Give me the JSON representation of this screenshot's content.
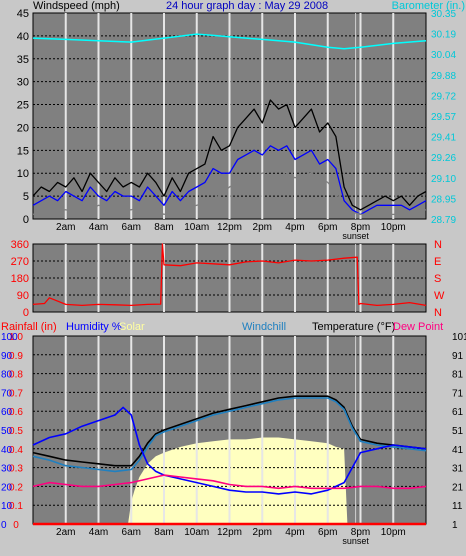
{
  "chart_data": [
    {
      "type": "line",
      "title": "24 hour graph day : May 29 2008",
      "left_label": "Windspeed (mph)",
      "right_label": "Barometer (in.)",
      "x_tick_labels": [
        "2am",
        "4am",
        "6am",
        "8am",
        "10am",
        "12pm",
        "2pm",
        "4pm",
        "6pm",
        "8pm",
        "10pm"
      ],
      "sunset_label": "sunset",
      "ylim": [
        0,
        45
      ],
      "y_ticks": [
        0,
        5,
        10,
        15,
        20,
        25,
        30,
        35,
        40,
        45
      ],
      "y2_ticks": [
        "28.79",
        "28.95",
        "29.10",
        "29.26",
        "29.41",
        "29.57",
        "29.72",
        "29.88",
        "30.04",
        "30.19",
        "30.35"
      ],
      "y2lim": [
        28.79,
        30.35
      ],
      "grid": true,
      "series": [
        {
          "key": "gust",
          "color": "#000000",
          "hours": [
            0,
            0.5,
            1,
            1.5,
            2,
            2.5,
            3,
            3.5,
            4,
            4.5,
            5,
            5.5,
            6,
            6.5,
            7,
            7.5,
            8,
            8.5,
            9,
            9.5,
            10,
            10.5,
            11,
            11.5,
            12,
            12.5,
            13,
            13.5,
            14,
            14.5,
            15,
            15.5,
            16,
            16.5,
            17,
            17.5,
            18,
            18.5,
            19,
            19.5,
            20,
            20.5,
            21,
            21.5,
            22,
            22.5,
            23,
            23.5,
            24
          ],
          "values": [
            5,
            7,
            6,
            8,
            7,
            9,
            6,
            10,
            8,
            6,
            9,
            7,
            8,
            7,
            10,
            8,
            5,
            9,
            6,
            10,
            11,
            12,
            18,
            15,
            16,
            20,
            22,
            24,
            21,
            26,
            24,
            25,
            20,
            22,
            24,
            19,
            21,
            18,
            7,
            3,
            2,
            3,
            4,
            5,
            4,
            5,
            3,
            5,
            6
          ]
        },
        {
          "key": "avg",
          "color": "#0000ff",
          "hours": [
            0,
            0.5,
            1,
            1.5,
            2,
            2.5,
            3,
            3.5,
            4,
            4.5,
            5,
            5.5,
            6,
            6.5,
            7,
            7.5,
            8,
            8.5,
            9,
            9.5,
            10,
            10.5,
            11,
            11.5,
            12,
            12.5,
            13,
            13.5,
            14,
            14.5,
            15,
            15.5,
            16,
            16.5,
            17,
            17.5,
            18,
            18.5,
            19,
            19.5,
            20,
            20.5,
            21,
            21.5,
            22,
            22.5,
            23,
            23.5,
            24
          ],
          "values": [
            3,
            4,
            5,
            4,
            6,
            5,
            4,
            7,
            5,
            4,
            6,
            5,
            5,
            4,
            7,
            5,
            3,
            6,
            4,
            6,
            7,
            8,
            11,
            10,
            10,
            13,
            14,
            15,
            14,
            16,
            15,
            16,
            13,
            14,
            15,
            12,
            13,
            11,
            4,
            2,
            1,
            2,
            3,
            3,
            3,
            3,
            2,
            3,
            4
          ]
        },
        {
          "key": "lull",
          "color": "#808080",
          "hours": [
            0,
            1,
            2,
            3,
            4,
            5,
            6,
            7,
            8,
            9,
            10,
            11,
            12,
            13,
            14,
            15,
            16,
            17,
            18,
            18.5,
            19,
            20,
            21,
            22,
            23,
            24
          ],
          "values": [
            1,
            2,
            2,
            1,
            3,
            2,
            2,
            3,
            1,
            2,
            3,
            4,
            7,
            9,
            10,
            11,
            9,
            10,
            8,
            6,
            2,
            1,
            1,
            1,
            1,
            2
          ]
        },
        {
          "key": "barometer",
          "color": "#00ffff",
          "hours": [
            0,
            2,
            4,
            6,
            8,
            10,
            11,
            12,
            14,
            16,
            18,
            19,
            20,
            22,
            24
          ],
          "values": [
            30.16,
            30.15,
            30.14,
            30.13,
            30.16,
            30.19,
            30.18,
            30.17,
            30.15,
            30.13,
            30.09,
            30.08,
            30.09,
            30.12,
            30.14
          ]
        }
      ]
    },
    {
      "type": "line",
      "left_ticks": [
        0,
        90,
        180,
        270,
        360
      ],
      "ylim": [
        0,
        360
      ],
      "right_labels": [
        "N",
        "W",
        "S",
        "E",
        "N"
      ],
      "series": [
        {
          "key": "direction",
          "color": "#ff0000",
          "hours": [
            0,
            0.7,
            1,
            2,
            3,
            4,
            5,
            6,
            7,
            7.8,
            7.9,
            8,
            9,
            10,
            11,
            12,
            13,
            14,
            15,
            16,
            17,
            18,
            19,
            19.8,
            19.9,
            20,
            21,
            22,
            23,
            24
          ],
          "values": [
            40,
            45,
            75,
            40,
            35,
            40,
            38,
            35,
            40,
            42,
            360,
            250,
            245,
            260,
            255,
            250,
            265,
            270,
            260,
            275,
            270,
            275,
            285,
            290,
            40,
            45,
            35,
            40,
            50,
            35
          ]
        }
      ]
    },
    {
      "type": "line",
      "legend_labels": {
        "rainfall": "Rainfall (in)",
        "humidity": "Humidity %",
        "solar": "Solar",
        "windchill": "Windchill",
        "temperature": "Temperature (°F)",
        "dewpoint": "Dew Point"
      },
      "x_tick_labels": [
        "2am",
        "4am",
        "6am",
        "8am",
        "10am",
        "12pm",
        "2pm",
        "4pm",
        "6pm",
        "8pm",
        "10pm"
      ],
      "sunset_label": "sunset",
      "rain_ticks": [
        "0",
        "0.1",
        "0.2",
        "0.3",
        "0.4",
        "0.5",
        "0.6",
        "0.7",
        "0.8",
        "0.9",
        "1.0"
      ],
      "humidity_ticks": [
        0,
        10,
        20,
        30,
        40,
        50,
        60,
        70,
        80,
        90,
        100
      ],
      "temp_ticks": [
        1,
        11,
        21,
        31,
        41,
        51,
        61,
        71,
        81,
        91,
        101
      ],
      "ylim": [
        0,
        100
      ],
      "series": [
        {
          "key": "solar",
          "color": "#ffffc0",
          "hours": [
            0,
            5.8,
            6,
            6.2,
            6.5,
            7,
            7.5,
            8,
            9,
            10,
            11,
            12,
            13,
            14,
            15,
            16,
            17,
            18,
            18.5,
            19,
            19.2,
            19.5,
            24
          ],
          "values": [
            0,
            0,
            12,
            18,
            25,
            32,
            36,
            38,
            41,
            43,
            44,
            45,
            45,
            46,
            46,
            45,
            44,
            43,
            41,
            40,
            0,
            0,
            0
          ]
        },
        {
          "key": "temperature",
          "color": "#000000",
          "hours": [
            0,
            1,
            2,
            3,
            4,
            5,
            6,
            6.5,
            7,
            7.5,
            8,
            9,
            10,
            11,
            12,
            13,
            14,
            15,
            16,
            17,
            18,
            18.5,
            19,
            19.5,
            20,
            21,
            22,
            23,
            24
          ],
          "values": [
            38,
            36,
            34,
            33,
            32,
            31,
            31,
            36,
            43,
            48,
            50,
            53,
            56,
            59,
            61,
            63,
            65,
            67,
            68,
            68,
            68,
            66,
            62,
            52,
            45,
            43,
            42,
            41,
            40
          ]
        },
        {
          "key": "windchill",
          "color": "#2080c0",
          "hours": [
            0,
            1,
            2,
            3,
            4,
            5,
            6,
            6.5,
            7,
            7.5,
            8,
            9,
            10,
            11,
            12,
            13,
            14,
            15,
            16,
            17,
            18,
            18.5,
            19,
            19.5,
            20,
            21,
            22,
            23,
            24
          ],
          "values": [
            36,
            34,
            31,
            30,
            29,
            28,
            29,
            34,
            41,
            47,
            49,
            52,
            55,
            58,
            60,
            62,
            64,
            66,
            67,
            67,
            67,
            65,
            61,
            51,
            44,
            42,
            41,
            40,
            39
          ]
        },
        {
          "key": "humidity",
          "color": "#0000ff",
          "hours": [
            0,
            1,
            2,
            3,
            4,
            5,
            5.5,
            6,
            6.5,
            7,
            7.5,
            8,
            9,
            10,
            11,
            12,
            13,
            14,
            15,
            16,
            17,
            18,
            18.5,
            19,
            19.5,
            20,
            21,
            22,
            23,
            24
          ],
          "values": [
            42,
            46,
            48,
            52,
            55,
            58,
            62,
            58,
            42,
            32,
            28,
            26,
            24,
            22,
            20,
            18,
            17,
            17,
            16,
            17,
            16,
            18,
            20,
            22,
            30,
            38,
            40,
            42,
            41,
            40
          ]
        },
        {
          "key": "dewpoint",
          "color": "#ff0080",
          "hours": [
            0,
            1,
            2,
            3,
            4,
            5,
            6,
            7,
            8,
            9,
            10,
            11,
            12,
            13,
            14,
            15,
            16,
            17,
            18,
            19,
            20,
            21,
            22,
            23,
            24
          ],
          "values": [
            20,
            22,
            21,
            20,
            20,
            21,
            22,
            24,
            26,
            25,
            24,
            23,
            21,
            20,
            20,
            19,
            20,
            19,
            19,
            19,
            20,
            20,
            19,
            19,
            20
          ]
        },
        {
          "key": "rainfall",
          "color": "#ff0000",
          "hours": [
            0,
            24
          ],
          "values": [
            0,
            0
          ]
        }
      ]
    }
  ]
}
